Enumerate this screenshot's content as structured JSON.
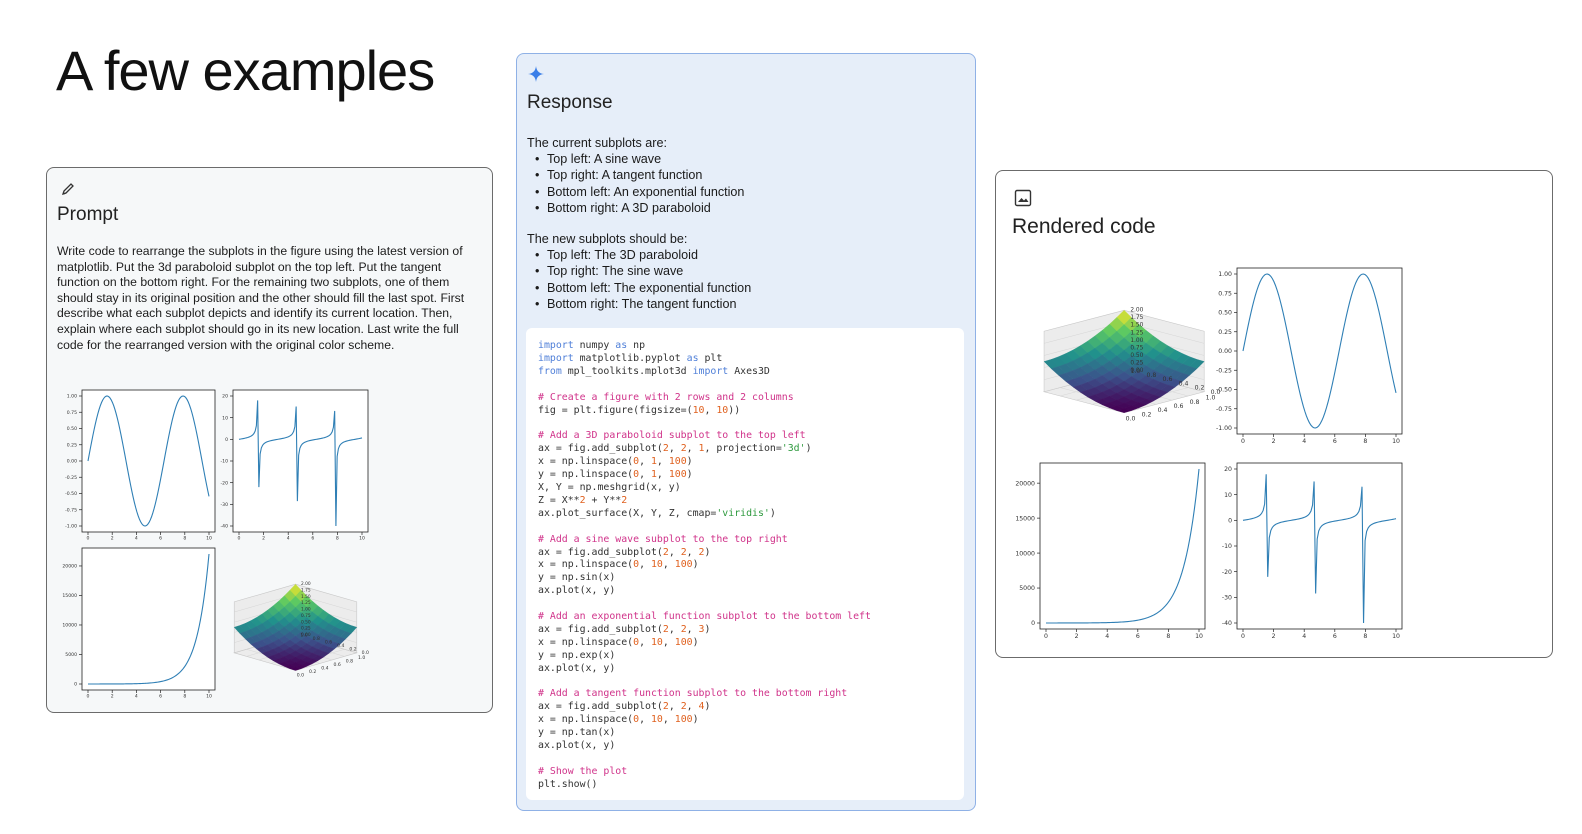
{
  "slide": {
    "title": "A few examples"
  },
  "prompt": {
    "title": "Prompt",
    "icon": "pencil-icon",
    "text": "Write code to rearrange the subplots in the figure using the latest version of matplotlib. Put the 3d paraboloid subplot on the top left. Put the tangent function on the bottom right. For the remaining two subplots, one of them should stay in its original position and the other should fill the last spot. First describe what each subplot depicts and identify its current location. Then, explain where each subplot should go in its new location.  Last write the full code for the rearranged version with the original color scheme."
  },
  "response": {
    "title": "Response",
    "icon": "sparkle-icon",
    "current_heading": "The current subplots are:",
    "current_items": [
      "Top left: A sine wave",
      "Top right: A tangent function",
      "Bottom left: An exponential function",
      "Bottom right: A 3D paraboloid"
    ],
    "new_heading": "The new subplots should be:",
    "new_items": [
      "Top left: The 3D paraboloid",
      "Top right: The sine wave",
      "Bottom left: The exponential function",
      "Bottom right: The tangent function"
    ],
    "code_lines": [
      "import numpy as np",
      "import matplotlib.pyplot as plt",
      "from mpl_toolkits.mplot3d import Axes3D",
      "",
      "# Create a figure with 2 rows and 2 columns",
      "fig = plt.figure(figsize=(10, 10))",
      "",
      "# Add a 3D paraboloid subplot to the top left",
      "ax = fig.add_subplot(2, 2, 1, projection='3d')",
      "x = np.linspace(0, 1, 100)",
      "y = np.linspace(0, 1, 100)",
      "X, Y = np.meshgrid(x, y)",
      "Z = X**2 + Y**2",
      "ax.plot_surface(X, Y, Z, cmap='viridis')",
      "",
      "# Add a sine wave subplot to the top right",
      "ax = fig.add_subplot(2, 2, 2)",
      "x = np.linspace(0, 10, 100)",
      "y = np.sin(x)",
      "ax.plot(x, y)",
      "",
      "# Add an exponential function subplot to the bottom left",
      "ax = fig.add_subplot(2, 2, 3)",
      "x = np.linspace(0, 10, 100)",
      "y = np.exp(x)",
      "ax.plot(x, y)",
      "",
      "# Add a tangent function subplot to the bottom right",
      "ax = fig.add_subplot(2, 2, 4)",
      "x = np.linspace(0, 10, 100)",
      "y = np.tan(x)",
      "ax.plot(x, y)",
      "",
      "# Show the plot",
      "plt.show()"
    ]
  },
  "rendered": {
    "title": "Rendered code",
    "icon": "image-icon"
  },
  "chart_data": [
    {
      "type": "line",
      "function": "sin",
      "x_range": [
        0,
        10
      ],
      "ylim": [
        -1.0,
        1.0
      ],
      "xticks": [
        "0",
        "2",
        "4",
        "6",
        "8",
        "10"
      ],
      "yticks": [
        "1.00",
        "0.75",
        "0.50",
        "0.25",
        "0.00",
        "-0.25",
        "-0.50",
        "-0.75",
        "-1.00"
      ]
    },
    {
      "type": "line",
      "function": "tan",
      "x_range": [
        0,
        10
      ],
      "ylim": [
        -40,
        20
      ],
      "xticks": [
        "0",
        "2",
        "4",
        "6",
        "8",
        "10"
      ],
      "yticks": [
        "20",
        "10",
        "0",
        "-10",
        "-20",
        "-30",
        "-40"
      ]
    },
    {
      "type": "line",
      "function": "exp",
      "x_range": [
        0,
        10
      ],
      "ylim": [
        0,
        22026
      ],
      "xticks": [
        "0",
        "2",
        "4",
        "6",
        "8",
        "10"
      ],
      "yticks": [
        "20000",
        "15000",
        "10000",
        "5000",
        "0"
      ]
    },
    {
      "type": "surface",
      "function": "x^2 + y^2",
      "cmap": "viridis",
      "x_ticks": [
        "0.0",
        "0.2",
        "0.4",
        "0.6",
        "0.8",
        "1.0"
      ],
      "y_ticks": [
        "0.0",
        "0.2",
        "0.4",
        "0.6",
        "0.8",
        "1.0"
      ],
      "z_ticks": [
        "2.00",
        "1.75",
        "1.50",
        "1.25",
        "1.00",
        "0.75",
        "0.50",
        "0.25",
        "0.00"
      ]
    }
  ]
}
